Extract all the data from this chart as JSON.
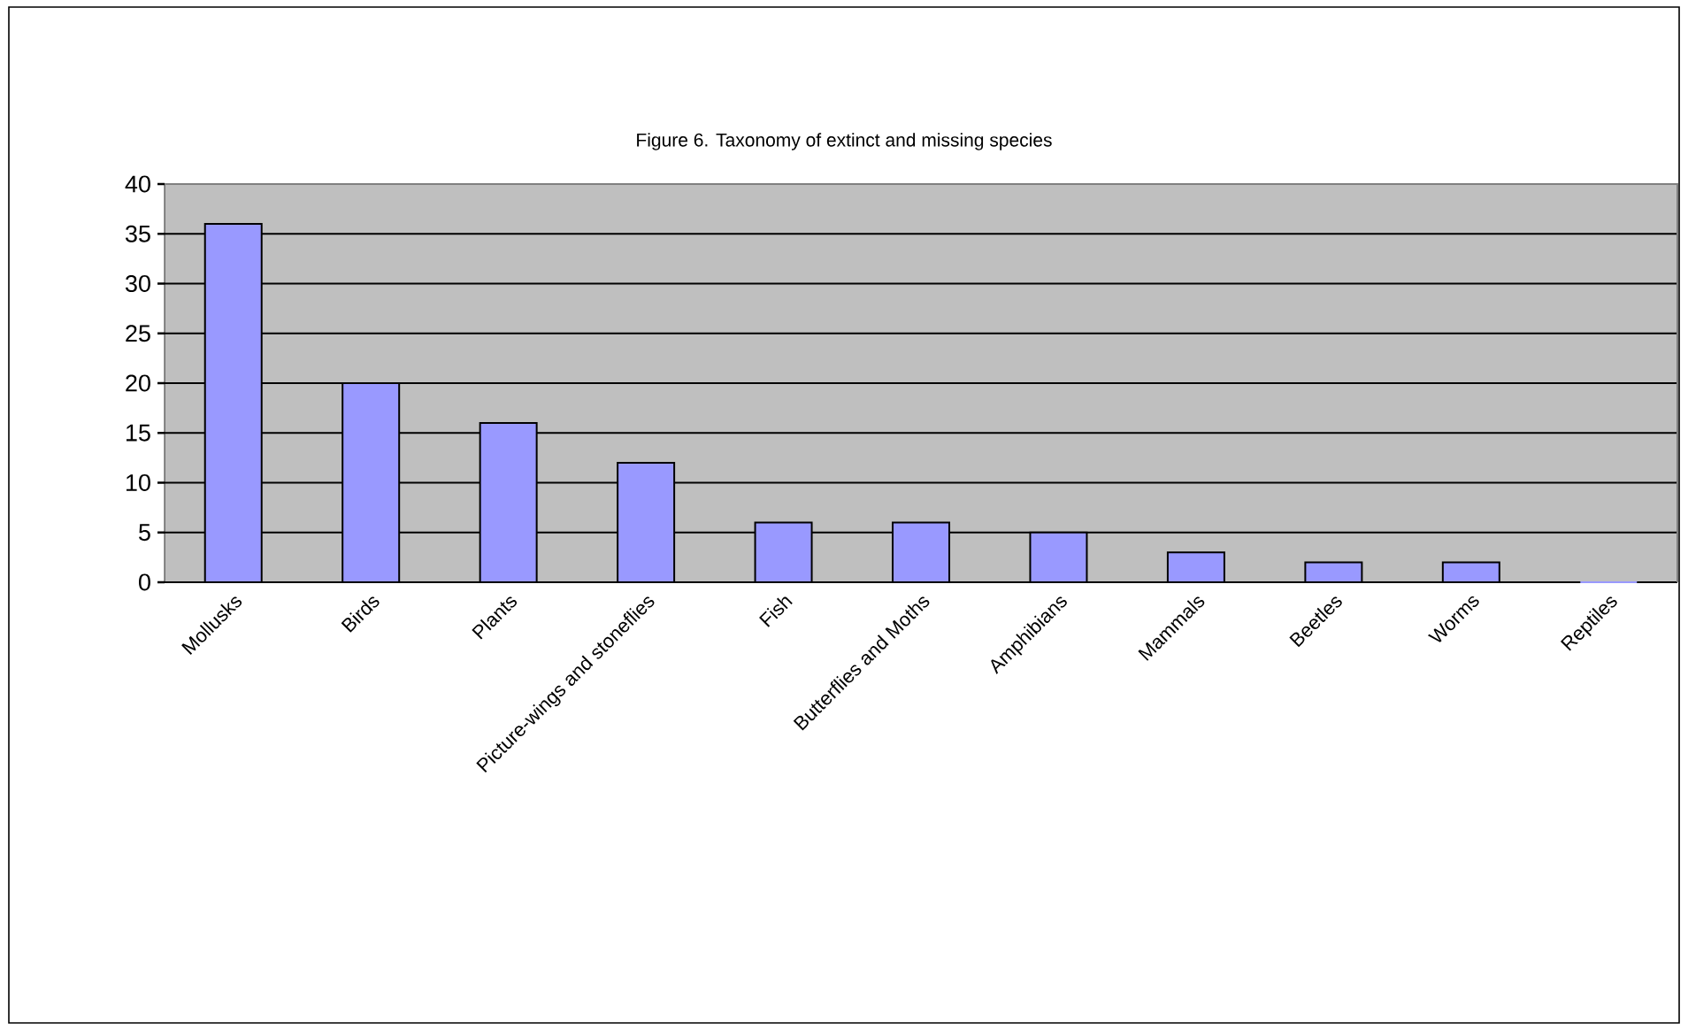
{
  "chart_data": {
    "type": "bar",
    "title": "Figure 6.  Taxonomy of extinct and missing species",
    "categories": [
      "Mollusks",
      "Birds",
      "Plants",
      "Picture-wings and stoneflies",
      "Fish",
      "Butterflies and Moths",
      "Amphibians",
      "Mammals",
      "Beetles",
      "Worms",
      "Reptiles"
    ],
    "values": [
      36,
      20,
      16,
      12,
      6,
      6,
      5,
      3,
      2,
      2,
      0
    ],
    "color": "#9999ff",
    "ylim": [
      0,
      40
    ],
    "yticks": [
      0,
      5,
      10,
      15,
      20,
      25,
      30,
      35,
      40
    ],
    "grid": "y"
  }
}
